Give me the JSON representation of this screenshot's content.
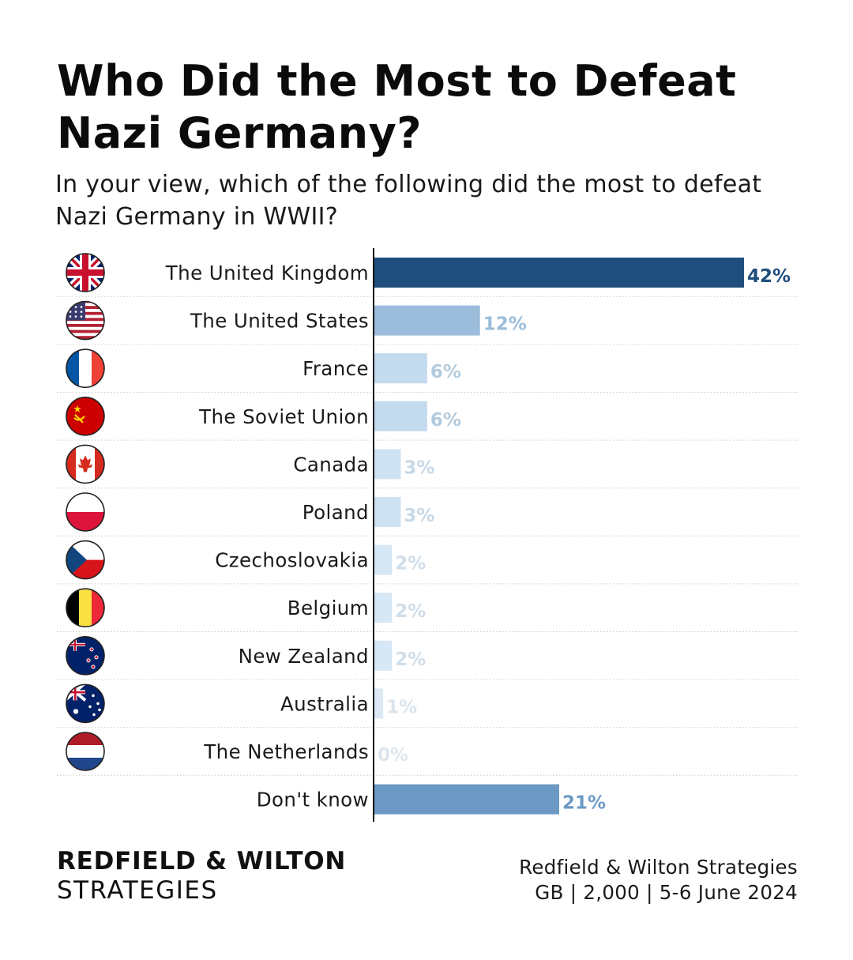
{
  "header": {
    "title": "Who Did the Most to Defeat Nazi Germany?",
    "subtitle": "In your view, which of the following did the most to defeat Nazi Germany in WWII?"
  },
  "chart_data": {
    "type": "bar",
    "orientation": "horizontal",
    "title": "Who Did the Most to Defeat Nazi Germany?",
    "subtitle": "In your view, which of the following did the most to defeat Nazi Germany in WWII?",
    "categories": [
      "The United Kingdom",
      "The United States",
      "France",
      "The Soviet Union",
      "Canada",
      "Poland",
      "Czechoslovakia",
      "Belgium",
      "New Zealand",
      "Australia",
      "The Netherlands",
      "Don't know"
    ],
    "values": [
      42,
      12,
      6,
      6,
      3,
      3,
      2,
      2,
      2,
      1,
      0,
      21
    ],
    "value_labels": [
      "42%",
      "12%",
      "6%",
      "6%",
      "3%",
      "3%",
      "2%",
      "2%",
      "2%",
      "1%",
      "0%",
      "21%"
    ],
    "unit": "%",
    "xlim": [
      0,
      42
    ],
    "grid": false,
    "legend": "none",
    "flags": [
      "uk-flag-icon",
      "us-flag-icon",
      "france-flag-icon",
      "soviet-flag-icon",
      "canada-flag-icon",
      "poland-flag-icon",
      "czechoslovakia-flag-icon",
      "belgium-flag-icon",
      "new-zealand-flag-icon",
      "australia-flag-icon",
      "netherlands-flag-icon",
      null
    ],
    "bar_colors": [
      "#1f4e7d",
      "#9bbddb",
      "#c3daef",
      "#c3daef",
      "#cfe2f3",
      "#cfe2f3",
      "#d6e7f5",
      "#d6e7f5",
      "#d6e7f5",
      "#dce9f5",
      "#e3eef8",
      "#6c98c4"
    ],
    "label_colors": [
      "#1f4e7d",
      "#9bbddb",
      "#b3cbdd",
      "#b3cbdd",
      "#c7d8e6",
      "#c7d8e6",
      "#cfdeea",
      "#cfdeea",
      "#cfdeea",
      "#dae5ee",
      "#dde6ee",
      "#6c98c4"
    ]
  },
  "footer": {
    "brand_line1": "REDFIELD & WILTON",
    "brand_line2": "STRATEGIES",
    "source_line1": "Redfield & Wilton Strategies",
    "source_line2": "GB | 2,000 | 5-6 June 2024"
  }
}
